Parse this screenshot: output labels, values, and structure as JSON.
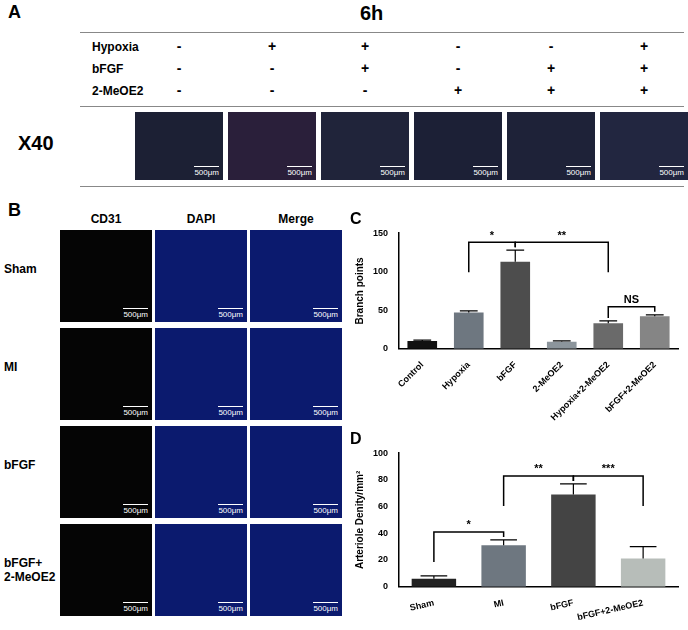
{
  "panel_a": {
    "label": "A",
    "title": "6h",
    "rows": [
      {
        "name": "Hypoxia",
        "marks": [
          "-",
          "+",
          "+",
          "-",
          "-",
          "+"
        ]
      },
      {
        "name": "bFGF",
        "marks": [
          "-",
          "-",
          "+",
          "-",
          "+",
          "+"
        ]
      },
      {
        "name": "2-MeOE2",
        "marks": [
          "-",
          "-",
          "-",
          "+",
          "+",
          "+"
        ]
      }
    ],
    "magnification": "X40",
    "scale_bar": "500μm"
  },
  "panel_b": {
    "label": "B",
    "columns": [
      "CD31",
      "DAPI",
      "Merge"
    ],
    "rows": [
      "Sham",
      "MI",
      "bFGF",
      "bFGF+\n2-MeOE2"
    ],
    "scale_bar": "500μm"
  },
  "chart_data": [
    {
      "type": "bar",
      "title": "C",
      "categories": [
        "Control",
        "Hypoxia",
        "bFGF",
        "2-MeOE2",
        "Hypoxia+2-MeOE2",
        "bFGF+2-MeOE2"
      ],
      "values": [
        10,
        47,
        113,
        9,
        33,
        42
      ],
      "errors": [
        1,
        2,
        15,
        1,
        3,
        2
      ],
      "colors": [
        "#111111",
        "#6e7780",
        "#4d4d4d",
        "#8c959c",
        "#6a6a6a",
        "#858585"
      ],
      "y_label": "Branch points",
      "ylim": [
        0,
        150
      ],
      "yticks": [
        0,
        50,
        100,
        150
      ],
      "grid": false,
      "annotations": [
        {
          "between": [
            "Hypoxia",
            "bFGF"
          ],
          "label": "*"
        },
        {
          "between": [
            "bFGF",
            "Hypoxia+2-MeOE2"
          ],
          "label": "**"
        },
        {
          "between": [
            "Hypoxia+2-MeOE2",
            "bFGF+2-MeOE2"
          ],
          "label": "NS"
        }
      ]
    },
    {
      "type": "bar",
      "title": "D",
      "categories": [
        "Sham",
        "MI",
        "bFGF",
        "bFGF+2-MeOE2"
      ],
      "values": [
        6,
        31,
        69,
        21
      ],
      "errors": [
        2,
        4,
        8,
        9
      ],
      "colors": [
        "#222222",
        "#6e7780",
        "#444444",
        "#b7bdb9"
      ],
      "y_label": "Arteriole Denity/mm²",
      "ylim": [
        0,
        100
      ],
      "yticks": [
        0,
        20,
        40,
        60,
        80,
        100
      ],
      "grid": false,
      "annotations": [
        {
          "between": [
            "Sham",
            "MI"
          ],
          "label": "*"
        },
        {
          "between": [
            "MI",
            "bFGF"
          ],
          "label": "**"
        },
        {
          "between": [
            "bFGF",
            "bFGF+2-MeOE2"
          ],
          "label": "***"
        }
      ]
    }
  ]
}
